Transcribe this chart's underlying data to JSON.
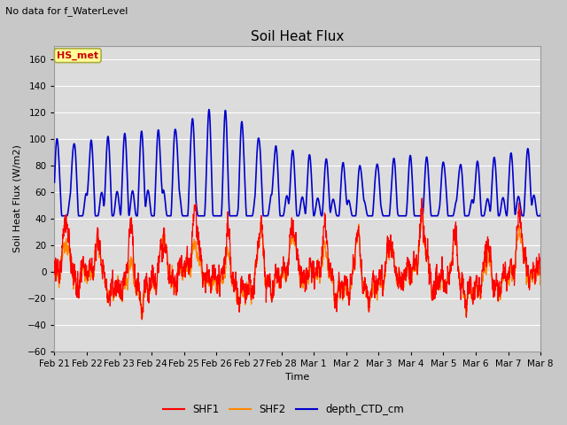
{
  "title": "Soil Heat Flux",
  "suptitle": "No data for f_WaterLevel",
  "ylabel": "Soil Heat Flux (W/m2)",
  "xlabel": "Time",
  "ylim": [
    -60,
    170
  ],
  "yticks": [
    -60,
    -40,
    -20,
    0,
    20,
    40,
    60,
    80,
    100,
    120,
    140,
    160
  ],
  "legend_labels": [
    "SHF1",
    "SHF2",
    "depth_CTD_cm"
  ],
  "shf1_color": "#ff0000",
  "shf2_color": "#ff8800",
  "depth_color": "#0000cc",
  "hs_met_label": "HS_met",
  "hs_met_color": "#cc0000",
  "hs_met_bg": "#ffff99",
  "hs_met_edge": "#aaaa44",
  "fig_bg": "#c8c8c8",
  "ax_bg": "#dcdcdc",
  "grid_color": "white",
  "tick_dates": [
    "Feb 21",
    "Feb 22",
    "Feb 23",
    "Feb 24",
    "Feb 25",
    "Feb 26",
    "Feb 27",
    "Feb 28",
    "Mar 1",
    "Mar 2",
    "Mar 3",
    "Mar 4",
    "Mar 5",
    "Mar 6",
    "Mar 7",
    "Mar 8"
  ]
}
